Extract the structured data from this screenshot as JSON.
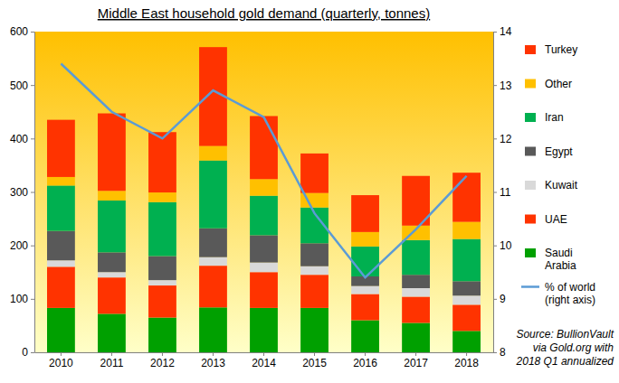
{
  "chart_data": {
    "type": "bar",
    "stacked": true,
    "title": "Middle East household gold demand (quarterly,  tonnes)",
    "source": [
      "Source:  BullionVault",
      "via Gold.org with",
      "2018 Q1 annualized"
    ],
    "categories": [
      "2010",
      "2011",
      "2012",
      "2013",
      "2014",
      "2015",
      "2016",
      "2017",
      "2018"
    ],
    "ylim": [
      0,
      600
    ],
    "yticks": [
      0,
      100,
      200,
      300,
      400,
      500,
      600
    ],
    "y2lim": [
      8,
      14
    ],
    "y2ticks": [
      8,
      9,
      10,
      11,
      12,
      13,
      14
    ],
    "grid": false,
    "legend": "right",
    "series": [
      {
        "name": "Saudi Arabia",
        "type": "bar",
        "color": "#00a000",
        "values": [
          83,
          72,
          65,
          84,
          83,
          83,
          60,
          55,
          40
        ]
      },
      {
        "name": "UAE",
        "type": "bar",
        "color": "#ff3300",
        "values": [
          77,
          68,
          60,
          78,
          67,
          62,
          49,
          49,
          49
        ]
      },
      {
        "name": "Kuwait",
        "type": "bar",
        "color": "#d9d9d9",
        "values": [
          12,
          10,
          10,
          16,
          18,
          16,
          15,
          16,
          17
        ]
      },
      {
        "name": "Egypt",
        "type": "bar",
        "color": "#595959",
        "values": [
          55,
          37,
          45,
          54,
          51,
          43,
          18,
          25,
          27
        ]
      },
      {
        "name": "Iran",
        "type": "bar",
        "color": "#00b050",
        "values": [
          85,
          97,
          101,
          127,
          74,
          67,
          56,
          65,
          79
        ]
      },
      {
        "name": "Other",
        "type": "bar",
        "color": "#ffc000",
        "values": [
          16,
          18,
          18,
          27,
          31,
          27,
          27,
          27,
          32
        ]
      },
      {
        "name": "Turkey",
        "type": "bar",
        "color": "#ff3300",
        "values": [
          107,
          145,
          113,
          185,
          118,
          74,
          69,
          93,
          92
        ]
      },
      {
        "name": "% of world (right axis)",
        "type": "line",
        "axis": "y2",
        "color": "#5b9bd5",
        "values": [
          13.4,
          12.5,
          12.0,
          12.9,
          12.4,
          10.6,
          9.4,
          10.3,
          11.3
        ]
      }
    ]
  }
}
